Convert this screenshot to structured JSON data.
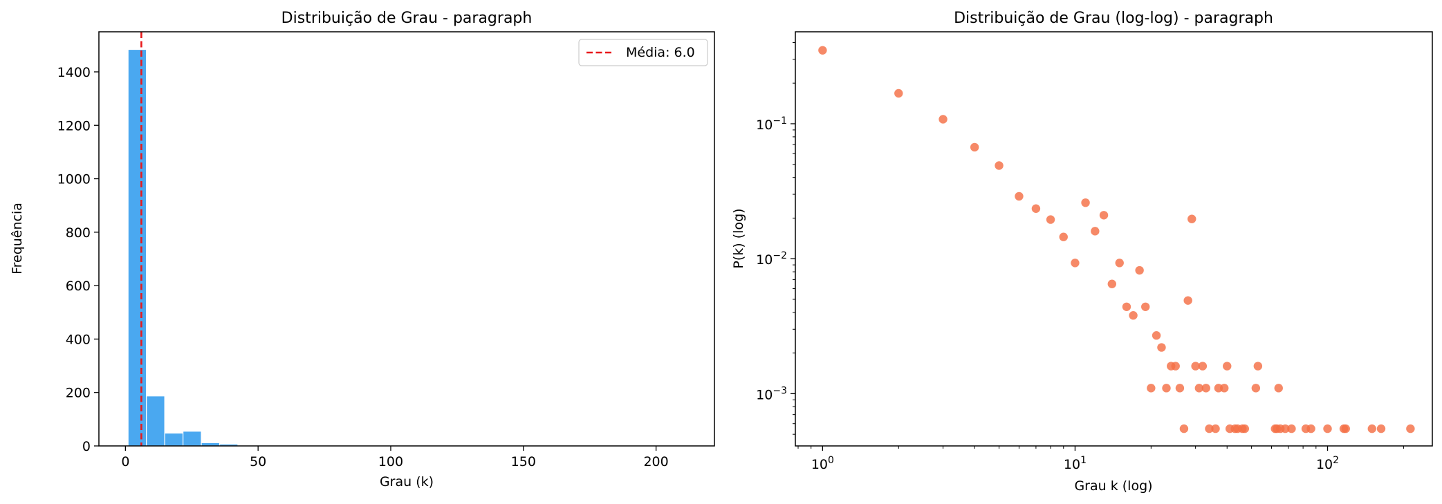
{
  "chart_data": [
    {
      "type": "bar",
      "title": "Distribuição de Grau - paragraph",
      "xlabel": "Grau (k)",
      "ylabel": "Frequência",
      "xlim": [
        -10,
        222
      ],
      "ylim": [
        0,
        1550
      ],
      "xticks": [
        0,
        50,
        100,
        150,
        200
      ],
      "xtick_labels": [
        "0",
        "50",
        "100",
        "150",
        "200"
      ],
      "yticks": [
        0,
        200,
        400,
        600,
        800,
        1000,
        1200,
        1400
      ],
      "ytick_labels": [
        "0",
        "200",
        "400",
        "600",
        "800",
        "1000",
        "1200",
        "1400"
      ],
      "bins": [
        {
          "x0": 1.0,
          "x1": 7.9,
          "value": 1484
        },
        {
          "x0": 7.9,
          "x1": 14.8,
          "value": 187
        },
        {
          "x0": 14.8,
          "x1": 21.7,
          "value": 48
        },
        {
          "x0": 21.7,
          "x1": 28.6,
          "value": 55
        },
        {
          "x0": 28.6,
          "x1": 35.5,
          "value": 12
        },
        {
          "x0": 35.5,
          "x1": 42.4,
          "value": 7
        },
        {
          "x0": 42.4,
          "x1": 49.3,
          "value": 2
        },
        {
          "x0": 49.3,
          "x1": 56.2,
          "value": 2
        },
        {
          "x0": 56.2,
          "x1": 63.1,
          "value": 1
        },
        {
          "x0": 63.1,
          "x1": 70.0,
          "value": 2
        },
        {
          "x0": 70.0,
          "x1": 76.9,
          "value": 1
        },
        {
          "x0": 76.9,
          "x1": 83.8,
          "value": 1
        },
        {
          "x0": 83.8,
          "x1": 90.7,
          "value": 1
        },
        {
          "x0": 97.6,
          "x1": 104.5,
          "value": 1
        },
        {
          "x0": 111.4,
          "x1": 118.3,
          "value": 2
        },
        {
          "x0": 145.9,
          "x1": 152.8,
          "value": 1
        },
        {
          "x0": 159.7,
          "x1": 166.6,
          "value": 1
        },
        {
          "x0": 207.0,
          "x1": 213.9,
          "value": 1
        }
      ],
      "bar_color": "#4aa8f0",
      "mean_line": {
        "value": 6.0,
        "label": "Média: 6.0",
        "color": "#e8191b"
      },
      "legend_position": "upper-right"
    },
    {
      "type": "scatter",
      "title": "Distribuição de Grau (log-log) - paragraph",
      "xlabel": "Grau k (log)",
      "ylabel": "P(k) (log)",
      "xscale": "log",
      "yscale": "log",
      "xlim": [
        0.78,
        260
      ],
      "ylim": [
        0.00041,
        0.48
      ],
      "xticks": [
        1,
        10,
        100
      ],
      "xtick_labels": [
        {
          "base": "10",
          "exp": "0"
        },
        {
          "base": "10",
          "exp": "1"
        },
        {
          "base": "10",
          "exp": "2"
        }
      ],
      "yticks": [
        0.001,
        0.01,
        0.1
      ],
      "ytick_labels": [
        {
          "base": "10",
          "exp": "−3"
        },
        {
          "base": "10",
          "exp": "−2"
        },
        {
          "base": "10",
          "exp": "−1"
        }
      ],
      "point_color": "#f46f45",
      "points": [
        [
          1,
          0.35
        ],
        [
          2,
          0.168
        ],
        [
          3,
          0.108
        ],
        [
          4,
          0.067
        ],
        [
          5,
          0.049
        ],
        [
          6,
          0.029
        ],
        [
          7,
          0.0235
        ],
        [
          8,
          0.0195
        ],
        [
          9,
          0.0145
        ],
        [
          10,
          0.0093
        ],
        [
          11,
          0.026
        ],
        [
          12,
          0.016
        ],
        [
          13,
          0.021
        ],
        [
          14,
          0.0065
        ],
        [
          15,
          0.0093
        ],
        [
          16,
          0.0044
        ],
        [
          17,
          0.0038
        ],
        [
          18,
          0.0082
        ],
        [
          19,
          0.0044
        ],
        [
          20,
          0.0011
        ],
        [
          21,
          0.0027
        ],
        [
          22,
          0.0022
        ],
        [
          23,
          0.0011
        ],
        [
          24,
          0.0016
        ],
        [
          25,
          0.0016
        ],
        [
          26,
          0.0011
        ],
        [
          27,
          0.00055
        ],
        [
          28,
          0.0049
        ],
        [
          29,
          0.0197
        ],
        [
          30,
          0.0016
        ],
        [
          31,
          0.0011
        ],
        [
          32,
          0.0016
        ],
        [
          33,
          0.0011
        ],
        [
          34,
          0.00055
        ],
        [
          36,
          0.00055
        ],
        [
          37,
          0.0011
        ],
        [
          39,
          0.0011
        ],
        [
          40,
          0.0016
        ],
        [
          41,
          0.00055
        ],
        [
          43,
          0.00055
        ],
        [
          44,
          0.00055
        ],
        [
          46,
          0.00055
        ],
        [
          47,
          0.00055
        ],
        [
          52,
          0.0011
        ],
        [
          53,
          0.0016
        ],
        [
          62,
          0.00055
        ],
        [
          63,
          0.00055
        ],
        [
          64,
          0.0011
        ],
        [
          65,
          0.00055
        ],
        [
          68,
          0.00055
        ],
        [
          72,
          0.00055
        ],
        [
          82,
          0.00055
        ],
        [
          86,
          0.00055
        ],
        [
          100,
          0.00055
        ],
        [
          116,
          0.00055
        ],
        [
          118,
          0.00055
        ],
        [
          150,
          0.00055
        ],
        [
          163,
          0.00055
        ],
        [
          213,
          0.00055
        ]
      ]
    }
  ]
}
